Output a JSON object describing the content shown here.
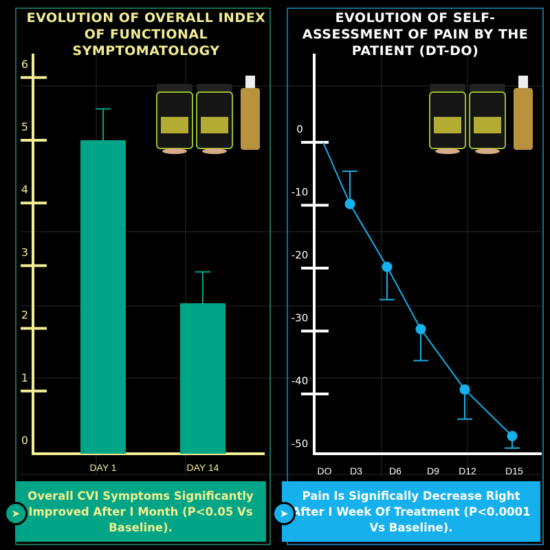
{
  "colors": {
    "left_accent": "#f2ee94",
    "bar": "#00a587",
    "right_accent": "#16b1ec",
    "axis_right": "#ffffff"
  },
  "chart_data": [
    {
      "type": "bar",
      "title": "EVOLUTION OF OVERALL INDEX OF FUNCTIONAL SYMPTOMATOLOGY",
      "categories": [
        "DAY 1",
        "DAY 14"
      ],
      "values": [
        5.0,
        2.4
      ],
      "error_upper": [
        5.5,
        2.9
      ],
      "yticks": [
        0,
        1,
        2,
        3,
        4,
        5,
        6
      ],
      "ylim": [
        0,
        6
      ],
      "xlabel": "",
      "ylabel": "",
      "grid": true
    },
    {
      "type": "line",
      "title": "EVOLUTION OF SELF-ASSESSMENT OF PAIN BY THE PATIENT (DT-DO)",
      "categories": [
        "DO",
        "D3",
        "D6",
        "D9",
        "D12",
        "D15"
      ],
      "values": [
        0,
        -9.8,
        -19.8,
        -29.7,
        -39.3,
        -46.7
      ],
      "error_bar_end": [
        null,
        -4.6,
        -25,
        -34.7,
        -44,
        -48.6
      ],
      "yticks": [
        0,
        -10,
        -20,
        -30,
        -40,
        -50
      ],
      "ylim": [
        -50,
        0
      ],
      "xlabel": "",
      "ylabel": "",
      "grid": true
    }
  ],
  "captions": {
    "left": "Overall CVI Symptoms Significantly Improved After I Month (P<0.05 Vs Baseline).",
    "right": "Pain Is Significally Decrease Right After I Week Of Treatment (P<0.0001 Vs Baseline)."
  },
  "icons": {
    "caption_arrow": "chevron-right-icon",
    "products": "product-bottles-image"
  }
}
